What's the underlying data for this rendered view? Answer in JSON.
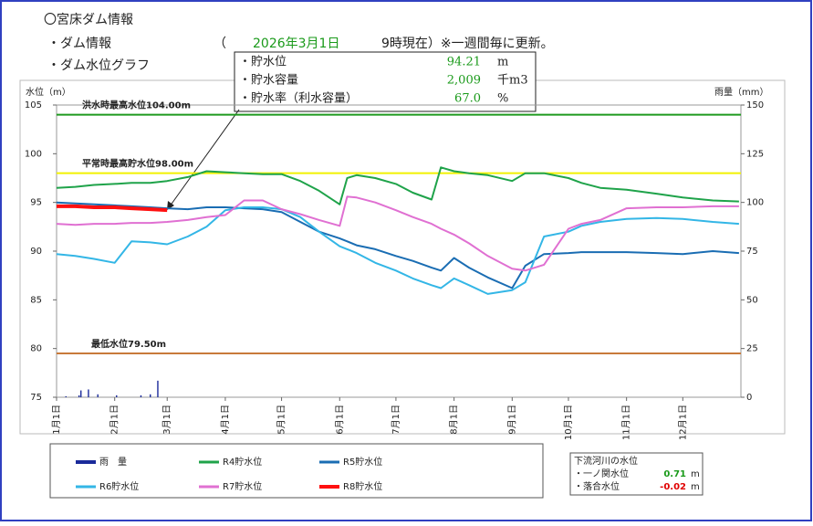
{
  "header": {
    "title": "〇宮床ダム情報",
    "section1": "・ダム情報",
    "paren_open": "（",
    "date": "2026年3月1日",
    "time_note": "9時現在）※一週間毎に更新。",
    "section2": "・ダム水位グラフ"
  },
  "dam_info": {
    "rows": [
      {
        "label": "・貯水位",
        "value": "94.21",
        "unit": "m"
      },
      {
        "label": "・貯水容量",
        "value": "2,009",
        "unit": "千m3"
      },
      {
        "label": "・貯水率（利水容量）",
        "value": "67.0",
        "unit": "%"
      }
    ]
  },
  "downstream": {
    "title": "下流河川の水位",
    "rows": [
      {
        "label": "・一ノ関水位",
        "value": "0.71",
        "unit": "m",
        "color": "#1a9a1a"
      },
      {
        "label": "・落合水位",
        "value": "-0.02",
        "unit": "m",
        "color": "#e00000"
      }
    ]
  },
  "chart_data": {
    "type": "line",
    "y_label": "水位（m）",
    "y2_label": "雨量（mm）",
    "xlim": [
      0,
      365
    ],
    "xticks": [
      {
        "value": 0,
        "label": "1月1日"
      },
      {
        "value": 31,
        "label": "2月1日"
      },
      {
        "value": 59,
        "label": "3月1日"
      },
      {
        "value": 90,
        "label": "4月1日"
      },
      {
        "value": 120,
        "label": "5月1日"
      },
      {
        "value": 151,
        "label": "6月1日"
      },
      {
        "value": 181,
        "label": "7月1日"
      },
      {
        "value": 212,
        "label": "8月1日"
      },
      {
        "value": 243,
        "label": "9月1日"
      },
      {
        "value": 273,
        "label": "10月1日"
      },
      {
        "value": 304,
        "label": "11月1日"
      },
      {
        "value": 334,
        "label": "12月1日"
      }
    ],
    "ylim": [
      75,
      105
    ],
    "yticks": [
      75,
      80,
      85,
      90,
      95,
      100,
      105
    ],
    "y2lim": [
      0,
      150
    ],
    "y2ticks": [
      0,
      25,
      50,
      75,
      100,
      125,
      150
    ],
    "reference_lines": [
      {
        "label": "洪水時最高水位104.00m",
        "value": 104,
        "color": "#1e9a1e"
      },
      {
        "label": "平常時最高貯水位98.00m",
        "value": 98,
        "color": "#f2f200"
      },
      {
        "label": "最低水位79.50m",
        "value": 79.5,
        "color": "#c87a3a"
      }
    ],
    "x": [
      0,
      10,
      20,
      31,
      40,
      50,
      59,
      70,
      80,
      90,
      100,
      110,
      120,
      130,
      140,
      151,
      155,
      160,
      170,
      181,
      190,
      200,
      205,
      212,
      220,
      230,
      243,
      250,
      260,
      273,
      280,
      290,
      304,
      320,
      334,
      350,
      364
    ],
    "series": [
      {
        "name": "雨　量",
        "color": "#1a2a9a",
        "axis": "y2",
        "type": "bar",
        "x": [
          5,
          12,
          13,
          17,
          22,
          32,
          45,
          50,
          54
        ],
        "values": [
          0.5,
          1,
          3.5,
          4,
          1.5,
          1,
          1,
          1.5,
          8.5
        ]
      },
      {
        "name": "R4貯水位",
        "color": "#1fa34a",
        "values": [
          96.5,
          96.6,
          96.8,
          96.9,
          97.0,
          97.0,
          97.2,
          97.6,
          98.2,
          98.1,
          98.0,
          97.9,
          97.9,
          97.2,
          96.2,
          94.8,
          97.5,
          97.8,
          97.5,
          96.9,
          96.0,
          95.3,
          98.6,
          98.2,
          98.0,
          97.8,
          97.2,
          98.0,
          98.0,
          97.5,
          97.0,
          96.5,
          96.3,
          95.9,
          95.5,
          95.2,
          95.1
        ]
      },
      {
        "name": "R5貯水位",
        "color": "#1a6db3",
        "values": [
          95.0,
          94.9,
          94.8,
          94.7,
          94.6,
          94.5,
          94.4,
          94.3,
          94.5,
          94.5,
          94.4,
          94.3,
          94.0,
          93.0,
          92.0,
          91.3,
          91.0,
          90.6,
          90.2,
          89.5,
          89.0,
          88.3,
          88.0,
          89.3,
          88.3,
          87.3,
          86.2,
          88.5,
          89.7,
          89.8,
          89.9,
          89.9,
          89.9,
          89.8,
          89.7,
          90.0,
          89.8
        ]
      },
      {
        "name": "R6貯水位",
        "color": "#33b6e6",
        "values": [
          89.7,
          89.5,
          89.2,
          88.8,
          91.0,
          90.9,
          90.7,
          91.5,
          92.5,
          94.2,
          94.5,
          94.5,
          94.3,
          93.5,
          92.0,
          90.5,
          90.2,
          89.8,
          88.8,
          88.0,
          87.2,
          86.5,
          86.2,
          87.2,
          86.5,
          85.6,
          86.0,
          86.8,
          91.5,
          92.0,
          92.6,
          93.0,
          93.3,
          93.4,
          93.3,
          93.0,
          92.8
        ]
      },
      {
        "name": "R7貯水位",
        "color": "#e070d2",
        "values": [
          92.8,
          92.7,
          92.8,
          92.8,
          92.9,
          92.9,
          93.0,
          93.2,
          93.5,
          93.7,
          95.2,
          95.2,
          94.3,
          93.8,
          93.2,
          92.6,
          95.6,
          95.5,
          95.0,
          94.2,
          93.5,
          92.8,
          92.3,
          91.7,
          90.8,
          89.5,
          88.2,
          88.0,
          88.6,
          92.3,
          92.8,
          93.2,
          94.4,
          94.5,
          94.5,
          94.6,
          94.6
        ]
      },
      {
        "name": "R8貯水位",
        "color": "#ff1010",
        "width": 4,
        "values": [
          94.6,
          94.6,
          94.5,
          94.5,
          94.4,
          94.3,
          94.21,
          null,
          null,
          null,
          null,
          null,
          null,
          null,
          null,
          null,
          null,
          null,
          null,
          null,
          null,
          null,
          null,
          null,
          null,
          null,
          null,
          null,
          null,
          null,
          null,
          null,
          null,
          null,
          null,
          null,
          null
        ]
      }
    ]
  }
}
